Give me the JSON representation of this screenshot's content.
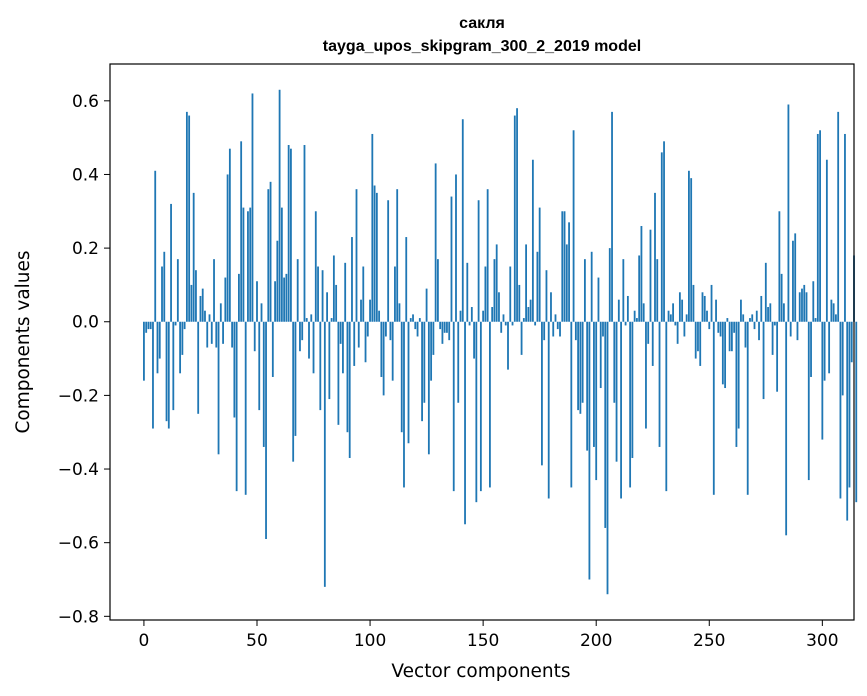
{
  "chart_data": {
    "type": "bar",
    "title": "сакля",
    "subtitle": "tayga_upos_skipgram_300_2_2019 model",
    "xlabel": "Vector components",
    "ylabel": "Components values",
    "xlim": [
      -15,
      314
    ],
    "ylim": [
      -0.81,
      0.7
    ],
    "xticks": [
      0,
      50,
      100,
      150,
      200,
      250,
      300
    ],
    "xtick_labels": [
      "0",
      "50",
      "100",
      "150",
      "200",
      "250",
      "300"
    ],
    "yticks": [
      -0.8,
      -0.6,
      -0.4,
      -0.2,
      0.0,
      0.2,
      0.4,
      0.6
    ],
    "ytick_labels": [
      "−0.8",
      "−0.6",
      "−0.4",
      "−0.2",
      "0.0",
      "0.2",
      "0.4",
      "0.6"
    ],
    "grid": false,
    "bar_color": "#1f77b4",
    "x_start": 0,
    "values": [
      -0.16,
      -0.03,
      -0.02,
      -0.02,
      -0.29,
      0.41,
      -0.14,
      -0.1,
      0.15,
      0.19,
      -0.27,
      -0.29,
      0.32,
      -0.24,
      -0.01,
      0.17,
      -0.14,
      -0.09,
      -0.02,
      0.57,
      0.56,
      0.1,
      0.35,
      0.14,
      -0.25,
      0.07,
      0.09,
      0.03,
      -0.07,
      0.02,
      -0.06,
      0.17,
      -0.07,
      -0.36,
      0.05,
      -0.06,
      0.12,
      0.4,
      0.47,
      -0.07,
      -0.26,
      -0.46,
      0.13,
      0.49,
      0.31,
      -0.47,
      0.3,
      0.31,
      0.62,
      -0.08,
      0.11,
      -0.24,
      0.05,
      -0.34,
      -0.59,
      0.36,
      0.38,
      -0.15,
      0.11,
      0.22,
      0.63,
      0.31,
      0.12,
      0.13,
      0.48,
      0.47,
      -0.38,
      -0.31,
      0.17,
      -0.08,
      -0.05,
      0.48,
      0.01,
      -0.1,
      0.02,
      -0.14,
      0.3,
      0.15,
      -0.24,
      0.14,
      -0.72,
      0.08,
      -0.21,
      0.01,
      0.18,
      0.1,
      -0.28,
      -0.06,
      -0.14,
      0.16,
      -0.3,
      -0.37,
      0.23,
      -0.12,
      0.36,
      -0.07,
      0.06,
      0.15,
      -0.11,
      -0.04,
      0.06,
      0.51,
      0.37,
      0.35,
      0.03,
      -0.15,
      -0.2,
      -0.04,
      0.33,
      -0.05,
      -0.16,
      0.15,
      0.36,
      0.05,
      -0.3,
      -0.45,
      0.23,
      -0.33,
      0.01,
      0.02,
      -0.02,
      -0.04,
      0.01,
      -0.27,
      -0.22,
      0.09,
      -0.36,
      -0.16,
      -0.09,
      0.43,
      0.17,
      -0.02,
      -0.06,
      -0.03,
      -0.03,
      -0.05,
      0.34,
      -0.46,
      0.4,
      -0.22,
      0.03,
      0.55,
      -0.55,
      0.16,
      -0.01,
      0.04,
      -0.1,
      -0.49,
      0.33,
      -0.46,
      0.03,
      0.15,
      0.36,
      -0.45,
      0.04,
      0.17,
      0.21,
      0.08,
      -0.03,
      0.02,
      -0.01,
      -0.13,
      0.15,
      -0.01,
      0.56,
      0.58,
      0.1,
      -0.09,
      0.01,
      0.21,
      0.04,
      0.06,
      0.44,
      -0.01,
      0.19,
      0.31,
      -0.39,
      -0.05,
      0.14,
      -0.48,
      0.08,
      -0.04,
      0.02,
      -0.02,
      -0.04,
      0.3,
      0.3,
      0.21,
      0.27,
      -0.45,
      0.52,
      -0.05,
      -0.24,
      -0.25,
      -0.22,
      0.17,
      -0.35,
      -0.7,
      0.19,
      -0.34,
      -0.43,
      0.12,
      -0.18,
      -0.04,
      -0.56,
      -0.74,
      0.2,
      0.57,
      -0.22,
      -0.38,
      0.06,
      -0.48,
      0.17,
      -0.01,
      0.07,
      -0.45,
      -0.37,
      0.03,
      0.01,
      0.18,
      0.26,
      0.05,
      -0.29,
      -0.06,
      0.25,
      -0.12,
      0.35,
      0.17,
      -0.34,
      0.46,
      0.49,
      -0.46,
      0.03,
      0.02,
      0.05,
      -0.01,
      -0.06,
      0.08,
      0.06,
      -0.04,
      0.02,
      0.41,
      0.39,
      0.1,
      -0.1,
      -0.08,
      -0.12,
      0.08,
      0.07,
      0.03,
      -0.02,
      0.1,
      -0.47,
      0.06,
      -0.03,
      -0.04,
      -0.17,
      -0.18,
      0.01,
      -0.08,
      -0.08,
      -0.03,
      -0.34,
      -0.29,
      0.06,
      0.02,
      -0.07,
      -0.47,
      0.01,
      0.02,
      -0.02,
      0.03,
      -0.05,
      0.07,
      -0.21,
      0.16,
      0.04,
      0.05,
      -0.09,
      -0.01,
      -0.19,
      0.3,
      0.13,
      0.05,
      -0.58,
      0.59,
      -0.04,
      0.22,
      0.24,
      -0.05,
      0.08,
      0.09,
      0.1,
      0.08,
      -0.43,
      -0.15,
      0.11,
      0.01,
      0.51,
      0.52,
      -0.32,
      -0.16,
      0.44,
      -0.14,
      0.06,
      0.05,
      0.02,
      0.57,
      -0.48,
      -0.2,
      0.51,
      -0.54,
      -0.45,
      -0.11,
      0.18,
      -0.49
    ]
  }
}
